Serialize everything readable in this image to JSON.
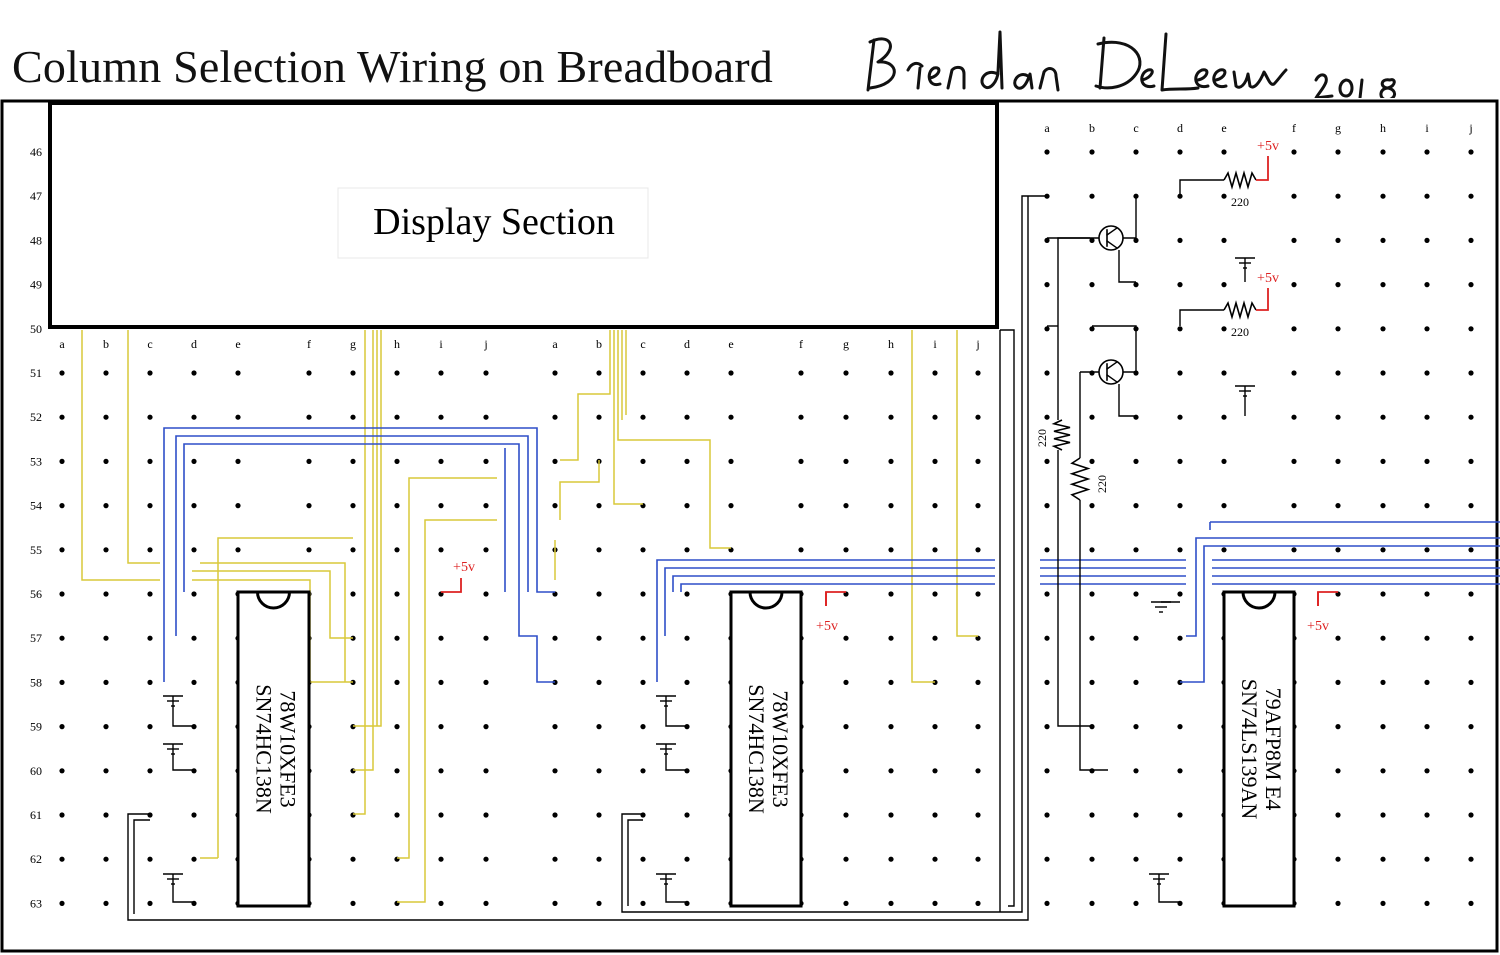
{
  "title": "Column Selection Wiring on Breadboard",
  "signature": "Brendan DeLeeuw 2018",
  "display_section_label": "Display Section",
  "rows": [
    "46",
    "47",
    "48",
    "49",
    "50",
    "51",
    "52",
    "53",
    "54",
    "55",
    "56",
    "57",
    "58",
    "59",
    "60",
    "61",
    "62",
    "63"
  ],
  "columns": [
    "a",
    "b",
    "c",
    "d",
    "e",
    "f",
    "g",
    "h",
    "i",
    "j"
  ],
  "chips": [
    {
      "line1": "78W10XFE3",
      "line2": "SN74HC138N"
    },
    {
      "line1": "78W10XFE3",
      "line2": "SN74HC138N"
    },
    {
      "line1": "79AFP8M E4",
      "line2": "SN74LS139AN"
    }
  ],
  "power_label": "+5v",
  "resistor_value": "220",
  "colors": {
    "yellow_wire": "#d9c93a",
    "blue_wire": "#2f4fc8",
    "power": "#dd2222",
    "ink": "#000000"
  }
}
